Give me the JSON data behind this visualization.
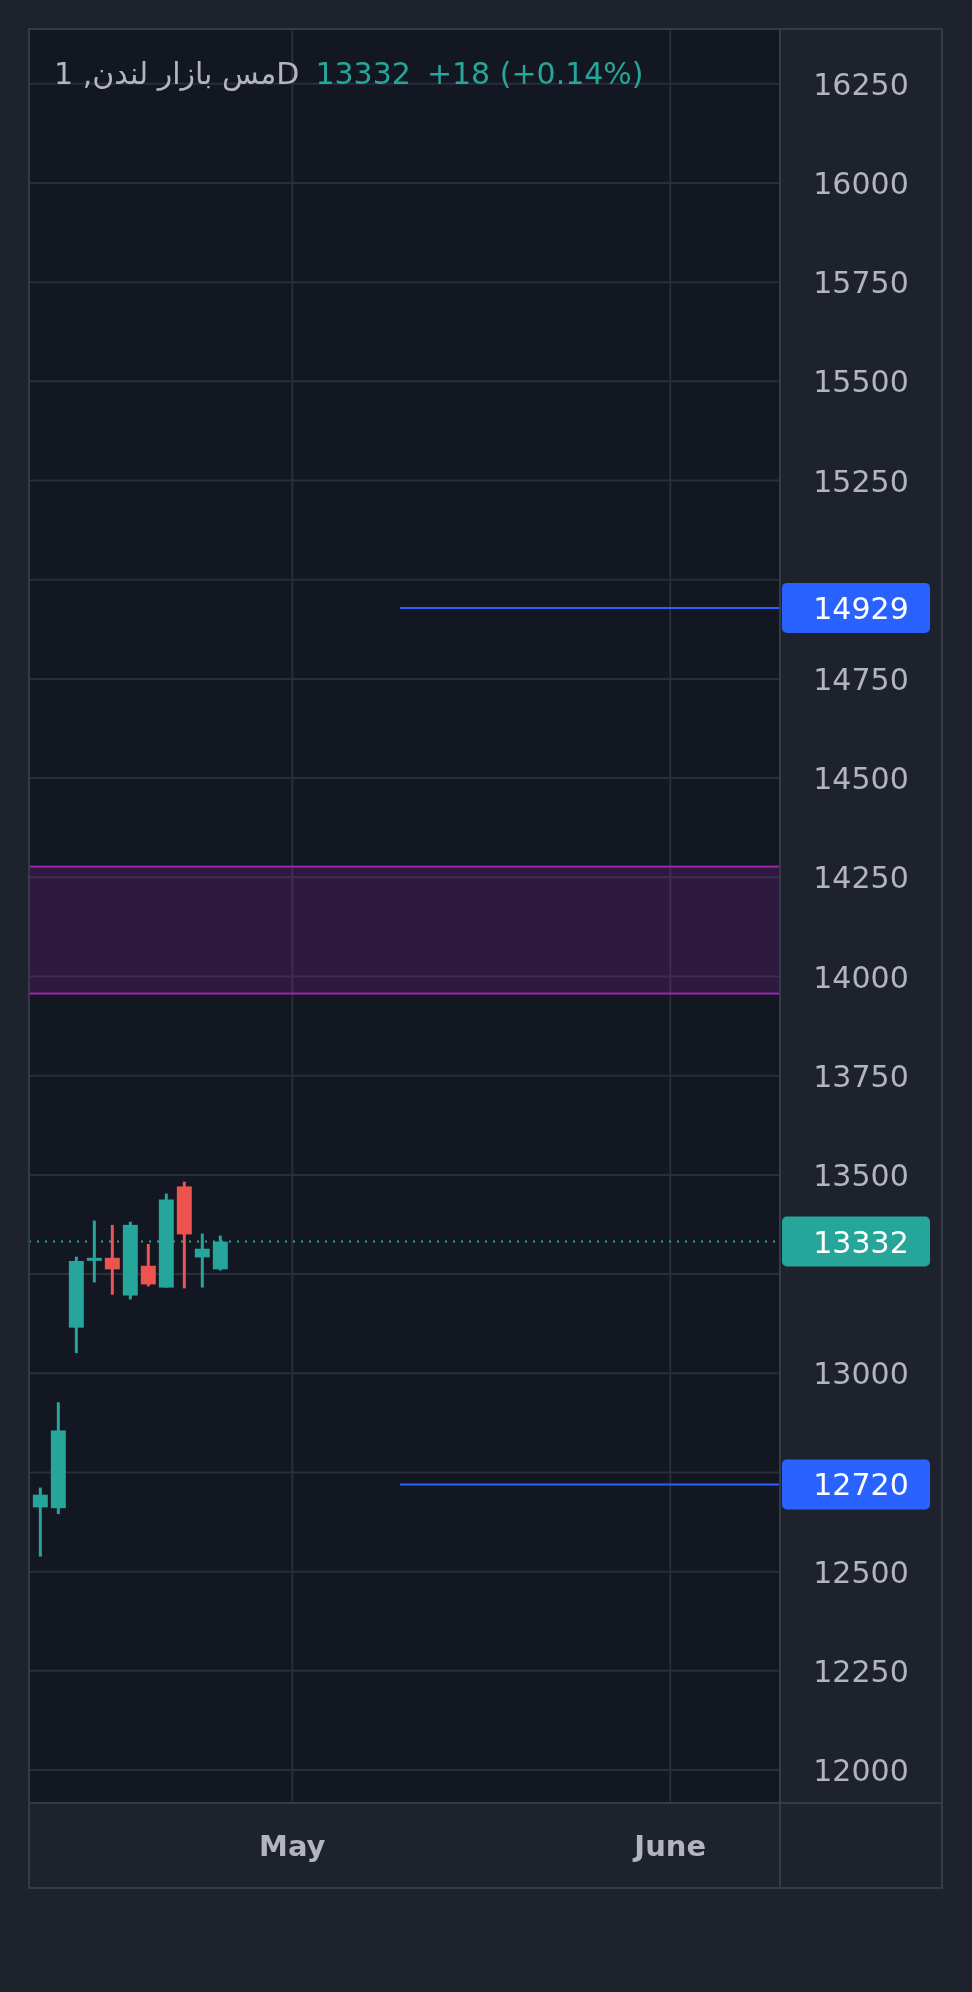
{
  "chart_data": {
    "type": "candlestick",
    "title": "مس بازار لندن, 1D",
    "annotations": [
      "13332",
      "+18 (+0.14%)"
    ],
    "categories": [
      null,
      null,
      null,
      null,
      null,
      null,
      null,
      null,
      null,
      null,
      null,
      null,
      null,
      null,
      "May",
      null,
      null,
      null,
      null,
      null,
      null,
      null,
      null,
      null,
      null,
      null,
      null,
      null,
      null,
      null,
      null,
      null,
      null,
      null,
      null,
      "June",
      null,
      null,
      null,
      null,
      null,
      null
    ],
    "ohlc": [
      [
        12662,
        12712,
        12538,
        12694
      ],
      [
        12660,
        12927,
        12645,
        12856
      ],
      [
        13115,
        13294,
        13051,
        13283
      ],
      [
        13286,
        13385,
        13229,
        13291
      ],
      [
        13291,
        13374,
        13198,
        13262
      ],
      [
        13196,
        13382,
        13186,
        13374
      ],
      [
        13271,
        13326,
        13219,
        13224
      ],
      [
        13216,
        13453,
        13216,
        13438
      ],
      [
        13471,
        13483,
        13214,
        13350
      ],
      [
        13292,
        13352,
        13216,
        13314
      ],
      [
        13262,
        13347,
        13259,
        13332
      ],
      null,
      null,
      null,
      null,
      null,
      null,
      null,
      null,
      null,
      null,
      null,
      null,
      null,
      null,
      null,
      null,
      null,
      null,
      null,
      null,
      null,
      null,
      null,
      null,
      null,
      null,
      null,
      null,
      null,
      null,
      null
    ],
    "colors": [
      "#26a69a",
      "#26a69a",
      "#26a69a",
      "#26a69a",
      "#ef5350",
      "#26a69a",
      "#ef5350",
      "#26a69a",
      "#ef5350",
      "#26a69a",
      "#26a69a",
      null,
      null,
      null,
      null,
      null,
      null,
      null,
      null,
      null,
      null,
      null,
      null,
      null,
      null,
      null,
      null,
      null,
      null,
      null,
      null,
      null,
      null,
      null,
      null,
      null,
      null,
      null,
      null,
      null,
      null,
      null
    ],
    "ylim": [
      11917,
      16388
    ],
    "yticks": [
      12000,
      12250,
      12500,
      {
        "value": 12750,
        "label": null
      },
      13000,
      {
        "value": 13250,
        "label": null
      },
      13500,
      13750,
      14000,
      14250,
      14500,
      14750,
      {
        "value": 15000,
        "label": null
      },
      15250,
      15500,
      15750,
      16000,
      16250
    ],
    "grid": true,
    "ref_lines": [
      {
        "axis": "y",
        "value": 14929,
        "label": "14929",
        "color": "#2962ff"
      },
      {
        "axis": "y",
        "value": 12720,
        "label": "12720",
        "color": "#2962ff"
      },
      {
        "axis": "y",
        "value": 13332,
        "label": "13332",
        "color": "#26a69a",
        "line_style": "dotted"
      }
    ],
    "bands": [
      {
        "axis": "y",
        "from": 13957,
        "to": 14277,
        "color": "#9c27b0"
      }
    ]
  }
}
